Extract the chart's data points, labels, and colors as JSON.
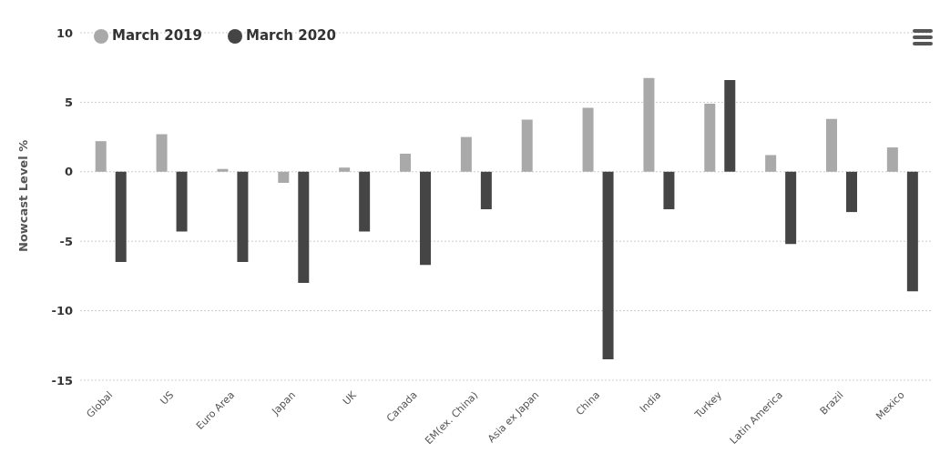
{
  "chart_data": {
    "type": "bar",
    "ylabel": "Nowcast Level %",
    "categories": [
      "Global",
      "US",
      "Euro Area",
      "Japan",
      "UK",
      "Canada",
      "EM(ex. China)",
      "Asia ex Japan",
      "China",
      "India",
      "Turkey",
      "Latin America",
      "Brazil",
      "Mexico"
    ],
    "series": [
      {
        "name": "March 2019",
        "color": "#a9a9a9",
        "values": [
          2.2,
          2.7,
          0.2,
          -0.8,
          0.3,
          1.3,
          2.5,
          3.75,
          4.6,
          6.75,
          4.9,
          1.2,
          3.8,
          1.75
        ]
      },
      {
        "name": "March 2020",
        "color": "#454545",
        "values": [
          -6.5,
          -4.3,
          -6.5,
          -8.0,
          -4.3,
          -6.7,
          -2.7,
          0,
          -13.5,
          -2.7,
          6.6,
          -5.2,
          -2.9,
          -8.6
        ]
      }
    ],
    "ylim": [
      -15,
      10
    ],
    "yticks": [
      -15,
      -10,
      -5,
      0,
      5,
      10
    ],
    "grid": "y",
    "legend": "top left"
  }
}
